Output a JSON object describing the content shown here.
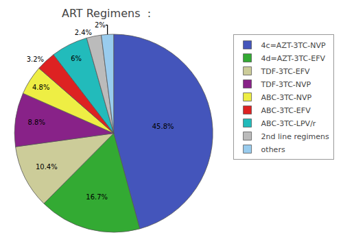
{
  "chart_data": {
    "type": "pie",
    "title": "ART Regimens  :",
    "categories": [
      "4c=AZT-3TC-NVP",
      "4d=AZT-3TC-EFV",
      "TDF-3TC-EFV",
      "TDF-3TC-NVP",
      "ABC-3TC-NVP",
      "ABC-3TC-EFV",
      "ABC-3TC-LPV/r",
      "2nd line regimens",
      "others"
    ],
    "values": [
      45.8,
      16.7,
      10.4,
      8.8,
      4.8,
      3.2,
      6.0,
      2.4,
      2.0
    ],
    "value_labels": [
      "45.8%",
      "16.7%",
      "10.4%",
      "8.8%",
      "4.8%",
      "3.2%",
      "6%",
      "2.4%",
      "2%"
    ],
    "colors": [
      "#4455BB",
      "#33AA33",
      "#CCCC99",
      "#882288",
      "#EEEE44",
      "#DD2222",
      "#22BBBB",
      "#BBBBBB",
      "#99CCEE"
    ],
    "data_labels": true,
    "legend": "upper right"
  }
}
